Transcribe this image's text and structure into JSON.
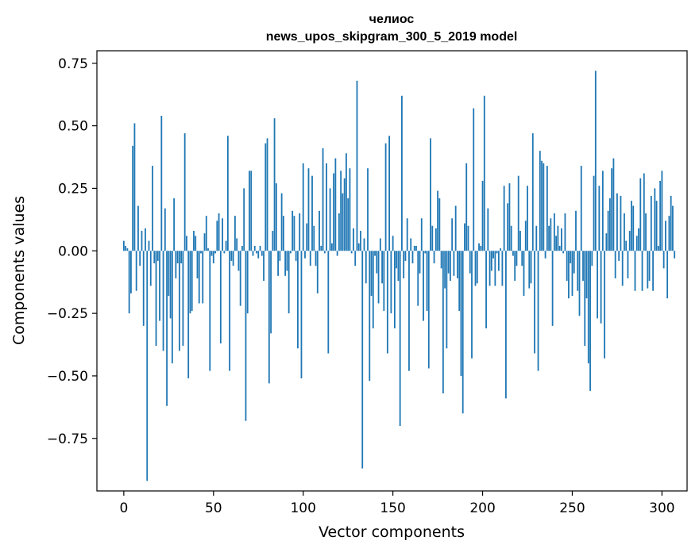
{
  "chart_data": {
    "type": "bar",
    "title_line1": "челиос",
    "title_line2": "news_upos_skipgram_300_5_2019 model",
    "xlabel": "Vector components",
    "ylabel": "Components values",
    "xlim": [
      -15,
      314
    ],
    "ylim": [
      -0.96,
      0.8
    ],
    "xticks": [
      0,
      50,
      100,
      150,
      200,
      250,
      300
    ],
    "xtick_labels": [
      "0",
      "50",
      "100",
      "150",
      "200",
      "250",
      "300"
    ],
    "yticks": [
      0.75,
      0.5,
      0.25,
      0.0,
      -0.25,
      -0.5,
      -0.75
    ],
    "ytick_labels": [
      "0.75",
      "0.50",
      "0.25",
      "0.00",
      "−0.25",
      "−0.50",
      "−0.75"
    ],
    "bar_color": "#1f77b4",
    "values": [
      0.04,
      0.02,
      0.01,
      -0.25,
      -0.17,
      0.42,
      0.51,
      -0.16,
      0.18,
      -0.06,
      0.08,
      -0.3,
      0.09,
      -0.92,
      0.04,
      -0.14,
      0.34,
      -0.05,
      -0.38,
      -0.04,
      -0.28,
      0.54,
      -0.4,
      0.17,
      -0.62,
      -0.18,
      -0.27,
      -0.45,
      0.21,
      -0.11,
      -0.05,
      -0.4,
      -0.05,
      -0.38,
      0.47,
      0.06,
      -0.51,
      -0.25,
      -0.24,
      0.08,
      0.06,
      -0.11,
      -0.21,
      -0.01,
      -0.21,
      0.07,
      0.14,
      0.01,
      -0.48,
      -0.02,
      -0.05,
      -0.01,
      0.12,
      0.15,
      -0.37,
      0.13,
      -0.01,
      0.04,
      0.46,
      -0.48,
      -0.04,
      -0.06,
      0.14,
      0.05,
      -0.08,
      -0.22,
      0.02,
      0.25,
      -0.68,
      -0.25,
      0.32,
      0.32,
      -0.02,
      0.02,
      -0.01,
      -0.03,
      0.02,
      -0.02,
      -0.12,
      0.43,
      0.45,
      -0.53,
      -0.33,
      0.08,
      0.53,
      0.27,
      -0.1,
      -0.04,
      0.23,
      0.14,
      -0.1,
      -0.08,
      -0.25,
      -0.01,
      0.16,
      0.14,
      -0.04,
      -0.39,
      0.15,
      -0.51,
      0.35,
      -0.03,
      0.11,
      0.33,
      -0.06,
      0.3,
      0.1,
      -0.06,
      -0.17,
      0.16,
      0.02,
      0.41,
      -0.01,
      0.35,
      -0.41,
      0.25,
      0.03,
      0.31,
      0.37,
      -0.02,
      0.15,
      0.32,
      0.23,
      0.29,
      0.39,
      0.21,
      0.33,
      -0.01,
      0.09,
      -0.06,
      0.68,
      0.03,
      0.08,
      -0.87,
      0.05,
      -0.13,
      0.33,
      -0.52,
      -0.18,
      -0.31,
      -0.02,
      -0.09,
      -0.21,
      0.05,
      -0.13,
      -0.24,
      0.43,
      -0.41,
      0.46,
      -0.25,
      0.06,
      -0.31,
      -0.07,
      -0.12,
      -0.7,
      0.62,
      -0.11,
      -0.04,
      0.13,
      -0.48,
      0.05,
      -0.05,
      0.02,
      0.02,
      -0.22,
      -0.09,
      0.13,
      -0.28,
      -0.01,
      -0.24,
      -0.47,
      0.45,
      0.1,
      -0.05,
      0.09,
      0.24,
      0.21,
      -0.07,
      -0.57,
      -0.15,
      -0.39,
      -0.09,
      -0.12,
      0.13,
      -0.1,
      0.18,
      -0.11,
      -0.24,
      -0.5,
      -0.65,
      0.11,
      0.35,
      0.1,
      -0.09,
      -0.43,
      0.57,
      -0.14,
      -0.13,
      0.03,
      0.02,
      0.28,
      0.62,
      -0.31,
      0.17,
      -0.14,
      -0.08,
      -0.03,
      -0.14,
      -0.01,
      -0.08,
      0.01,
      -0.14,
      0.26,
      -0.59,
      0.19,
      0.27,
      0.1,
      -0.02,
      -0.12,
      -0.06,
      0.3,
      0.08,
      -0.06,
      -0.18,
      0.12,
      0.26,
      -0.15,
      -0.13,
      0.47,
      -0.41,
      0.1,
      -0.48,
      0.4,
      0.36,
      0.35,
      -0.03,
      0.34,
      0.1,
      0.13,
      -0.3,
      0.15,
      0.06,
      0.1,
      0.02,
      0.09,
      -0.01,
      0.15,
      -0.12,
      -0.19,
      -0.05,
      -0.18,
      -0.09,
      0.16,
      -0.16,
      -0.26,
      0.34,
      -0.12,
      -0.38,
      -0.19,
      -0.45,
      -0.56,
      -0.06,
      0.3,
      0.72,
      -0.27,
      0.26,
      -0.29,
      0.32,
      -0.43,
      0.07,
      0.16,
      0.21,
      0.33,
      0.37,
      -0.11,
      0.23,
      -0.04,
      0.22,
      -0.14,
      0.15,
      0.04,
      -0.11,
      0.08,
      0.2,
      0.18,
      -0.16,
      0.06,
      0.09,
      0.29,
      -0.16,
      0.31,
      0.15,
      -0.15,
      -0.12,
      0.22,
      -0.16,
      0.25,
      0.2,
      0.02,
      0.28,
      0.32,
      -0.07,
      0.12,
      -0.19,
      0.14,
      0.22,
      0.18,
      -0.03
    ]
  }
}
